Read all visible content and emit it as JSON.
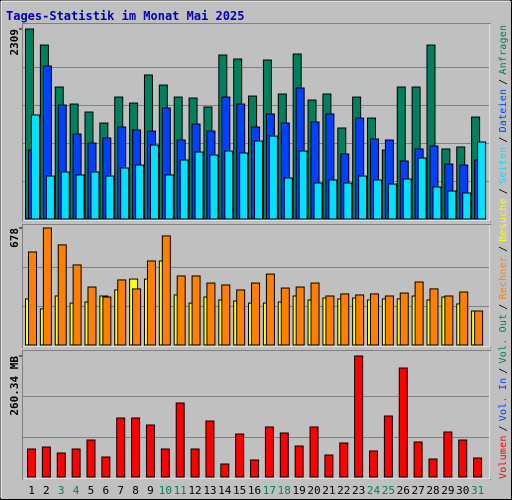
{
  "title": "Tages-Statistik im Monat Mai 2025",
  "legend_separator": "/",
  "chart_data": [
    {
      "type": "bar",
      "ylim": [
        0,
        2309
      ],
      "yticks": [
        2309
      ],
      "series": [
        {
          "name": "Anfragen",
          "color": "#00805c",
          "values": [
            2309,
            2114,
            1604,
            1397,
            1300,
            1166,
            1482,
            1409,
            1750,
            1628,
            1482,
            1470,
            1361,
            1993,
            1944,
            1494,
            1932,
            1519,
            2005,
            1446,
            1519,
            1106,
            1482,
            1227,
            838,
            1604,
            1604,
            2114,
            851,
            875,
            1239
          ]
        },
        {
          "name": "Dateien",
          "color": "#0040ff",
          "values": [
            838,
            1859,
            1385,
            1033,
            923,
            984,
            1118,
            1081,
            1069,
            1349,
            960,
            1154,
            1069,
            1482,
            1397,
            1118,
            1276,
            1166,
            1592,
            1179,
            1276,
            790,
            1227,
            972,
            960,
            705,
            851,
            887,
            668,
            656,
            717
          ]
        },
        {
          "name": "Seiten",
          "color": "#00e0ff",
          "values": [
            1264,
            522,
            571,
            535,
            571,
            522,
            620,
            656,
            899,
            535,
            717,
            814,
            778,
            826,
            802,
            948,
            1008,
            498,
            826,
            437,
            474,
            437,
            522,
            474,
            425,
            486,
            741,
            389,
            340,
            316,
            936
          ]
        }
      ]
    },
    {
      "type": "bar",
      "ylim": [
        0,
        678
      ],
      "yticks": [
        678
      ],
      "series": [
        {
          "name": "Besuche",
          "color": "#ffff00",
          "values": [
            267,
            209,
            284,
            243,
            249,
            284,
            319,
            382,
            382,
            487,
            290,
            243,
            278,
            261,
            255,
            243,
            243,
            249,
            284,
            261,
            272,
            267,
            272,
            261,
            267,
            267,
            284,
            261,
            278,
            238,
            197
          ]
        },
        {
          "name": "Rechner",
          "color": "#ff8000",
          "values": [
            539,
            678,
            580,
            464,
            336,
            278,
            377,
            325,
            487,
            632,
            400,
            400,
            359,
            348,
            319,
            359,
            411,
            330,
            336,
            359,
            284,
            296,
            290,
            296,
            284,
            301,
            365,
            325,
            284,
            307,
            197
          ]
        }
      ]
    },
    {
      "type": "bar",
      "ylim": [
        0,
        260.34
      ],
      "yticks": [
        {
          "value": 260.34,
          "label": "260.34 MB"
        }
      ],
      "categories": [
        "1",
        "2",
        "3",
        "4",
        "5",
        "6",
        "7",
        "8",
        "9",
        "10",
        "11",
        "12",
        "13",
        "14",
        "15",
        "16",
        "17",
        "18",
        "19",
        "20",
        "21",
        "22",
        "23",
        "24",
        "25",
        "26",
        "27",
        "28",
        "29",
        "30",
        "31"
      ],
      "category_colors": [
        "#000000",
        "#000000",
        "#00805c",
        "#00805c",
        "#000000",
        "#000000",
        "#000000",
        "#000000",
        "#000000",
        "#00805c",
        "#00805c",
        "#000000",
        "#000000",
        "#000000",
        "#000000",
        "#000000",
        "#00805c",
        "#00805c",
        "#000000",
        "#000000",
        "#000000",
        "#000000",
        "#000000",
        "#00805c",
        "#00805c",
        "#000000",
        "#000000",
        "#000000",
        "#000000",
        "#000000",
        "#00805c"
      ],
      "series": [
        {
          "name": "Volumen",
          "color": "#ff0000",
          "values": [
            60.24,
            64.55,
            51.64,
            60.24,
            79.61,
            43.03,
            126.94,
            126.94,
            111.88,
            60.24,
            159.22,
            60.24,
            120.49,
            27.97,
            92.52,
            36.58,
            107.58,
            94.67,
            66.7,
            107.58,
            47.34,
            73.15,
            260.34,
            55.94,
            131.25,
            234.52,
            75.31,
            38.73,
            96.82,
            79.61,
            40.88
          ]
        }
      ],
      "extra_legend": [
        {
          "name": "Vol. In",
          "color": "#0040ff"
        },
        {
          "name": "Vol. Out",
          "color": "#00805c"
        }
      ]
    }
  ]
}
